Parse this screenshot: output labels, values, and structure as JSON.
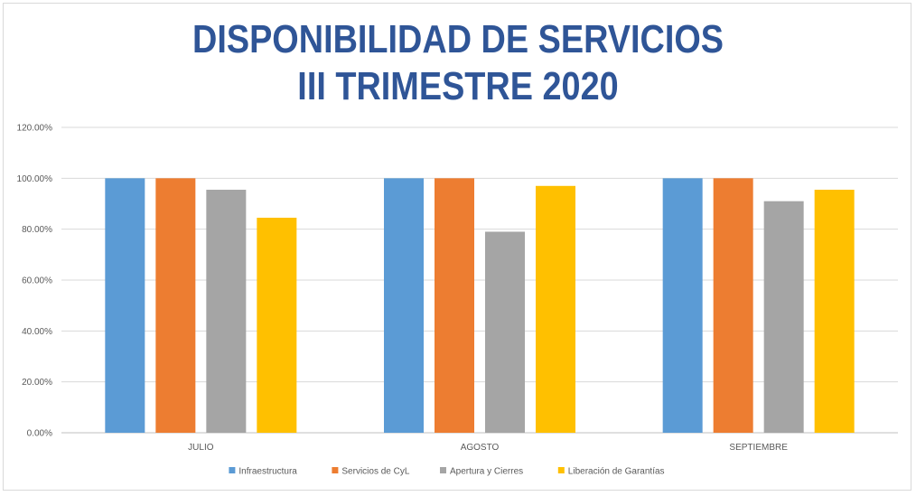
{
  "chart_data": {
    "type": "bar",
    "title": [
      "DISPONIBILIDAD DE SERVICIOS",
      "III TRIMESTRE 2020"
    ],
    "categories": [
      "JULIO",
      "AGOSTO",
      "SEPTIEMBRE"
    ],
    "ylim": [
      0,
      1.2
    ],
    "yticks": [
      "0.00%",
      "20.00%",
      "40.00%",
      "60.00%",
      "80.00%",
      "100.00%",
      "120.00%"
    ],
    "grid": true,
    "legend_position": "bottom",
    "series": [
      {
        "name": "Infraestructura",
        "color": "#5b9bd5",
        "values": [
          1.0,
          1.0,
          1.0
        ]
      },
      {
        "name": "Servicios de CyL",
        "color": "#ed7d31",
        "values": [
          1.0,
          1.0,
          1.0
        ]
      },
      {
        "name": "Apertura y Cierres",
        "color": "#a5a5a5",
        "values": [
          0.955,
          0.79,
          0.91
        ]
      },
      {
        "name": "Liberación de Garantías",
        "color": "#ffc000",
        "values": [
          0.845,
          0.97,
          0.955
        ]
      }
    ]
  }
}
